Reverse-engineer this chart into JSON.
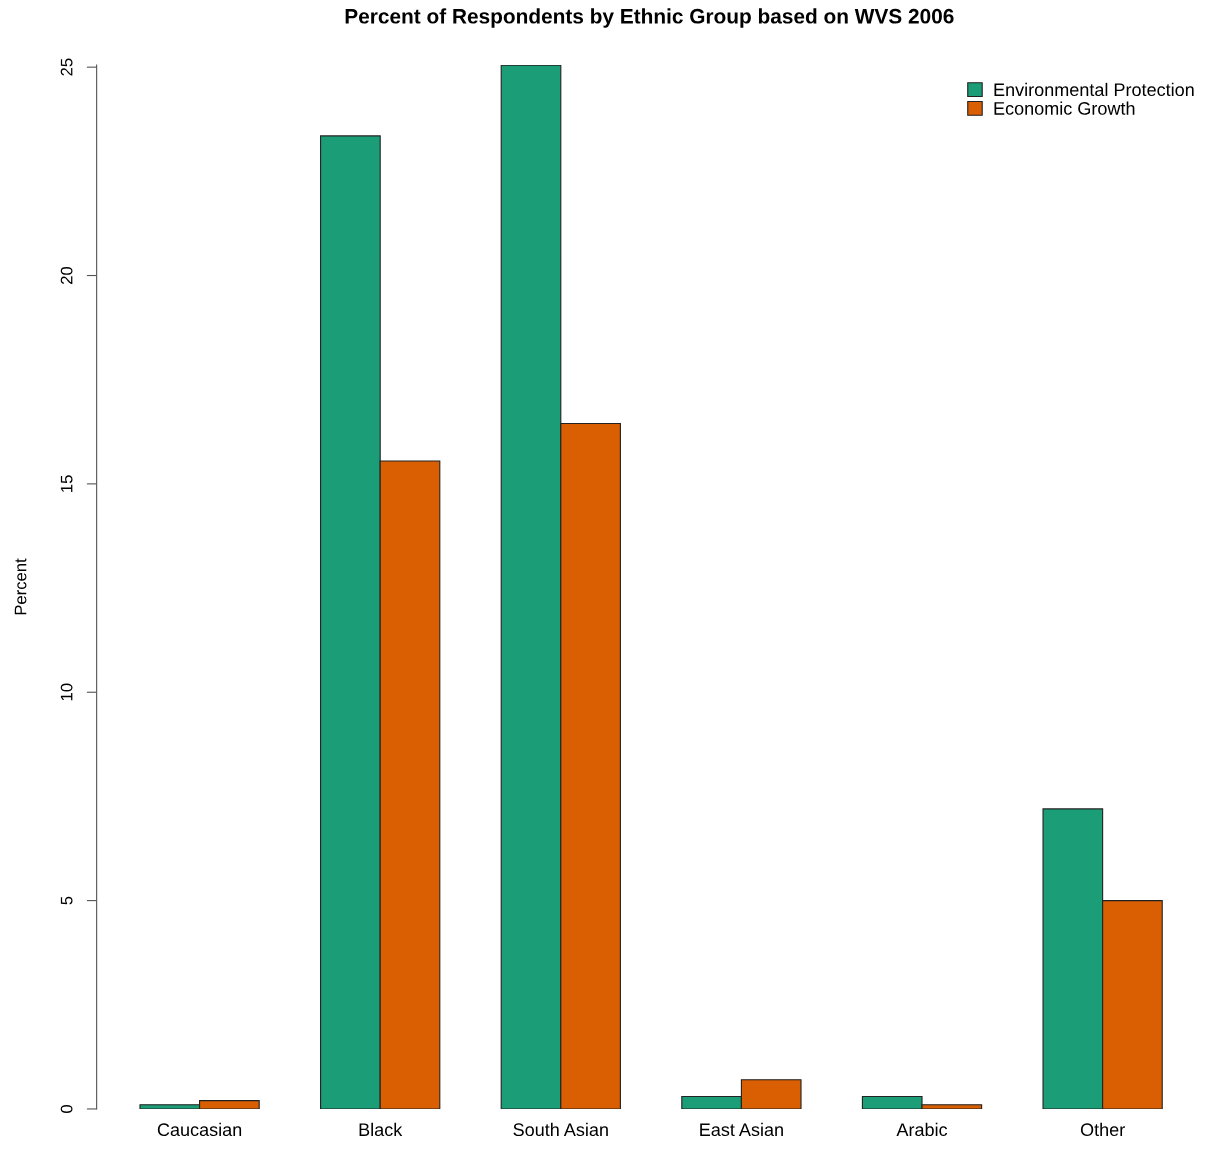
{
  "chart_data": {
    "type": "bar",
    "title": "Percent of Respondents by Ethnic Group based on WVS 2006",
    "ylabel": "Percent",
    "categories": [
      "Caucasian",
      "Black",
      "South Asian",
      "East Asian",
      "Arabic",
      "Other"
    ],
    "series": [
      {
        "name": "Environmental Protection",
        "color": "#1b9e77",
        "values": [
          0.1,
          23.35,
          25.05,
          0.3,
          0.3,
          7.2
        ]
      },
      {
        "name": "Economic Growth",
        "color": "#d95f02",
        "values": [
          0.2,
          15.55,
          16.45,
          0.7,
          0.1,
          5.0
        ]
      }
    ],
    "ylim": [
      0,
      25.05
    ],
    "yticks": [
      0,
      5,
      10,
      15,
      20,
      25
    ],
    "grid": false,
    "legend": "top right"
  }
}
